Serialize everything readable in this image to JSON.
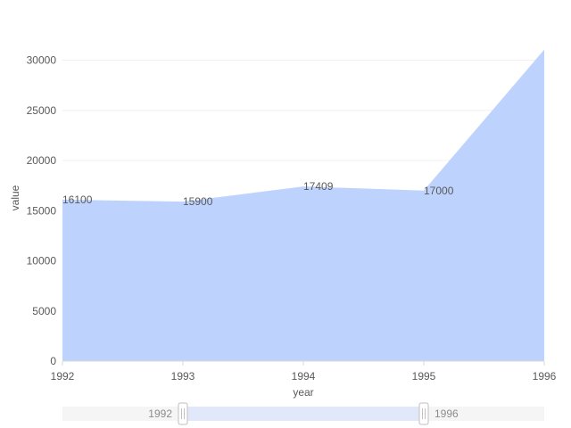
{
  "chart_data": {
    "type": "area",
    "x": [
      1992,
      1993,
      1994,
      1995,
      1996
    ],
    "x_labels": [
      "1992",
      "1993",
      "1994",
      "1995",
      "1996"
    ],
    "values": [
      16100,
      15900,
      17409,
      17000,
      31056
    ],
    "data_labels": [
      "16100",
      "15900",
      "17409",
      "17000",
      ""
    ],
    "xlabel": "year",
    "ylabel": "value",
    "ylim": [
      0,
      32000
    ],
    "y_ticks": [
      0,
      5000,
      10000,
      15000,
      20000,
      25000,
      30000
    ],
    "y_tick_labels": [
      "0",
      "5000",
      "10000",
      "15000",
      "20000",
      "25000",
      "30000"
    ],
    "grid": true,
    "area_color": "#bdd2fd",
    "grid_color": "#f0f0f0",
    "axis_color": "#d9d9d9",
    "text_color": "#595959"
  },
  "slider": {
    "start_label": "1992",
    "end_label": "1996",
    "start_fraction": 0.25,
    "end_fraction": 0.75,
    "track_color": "#f5f5f5",
    "selection_color": "#e1e8f9"
  }
}
